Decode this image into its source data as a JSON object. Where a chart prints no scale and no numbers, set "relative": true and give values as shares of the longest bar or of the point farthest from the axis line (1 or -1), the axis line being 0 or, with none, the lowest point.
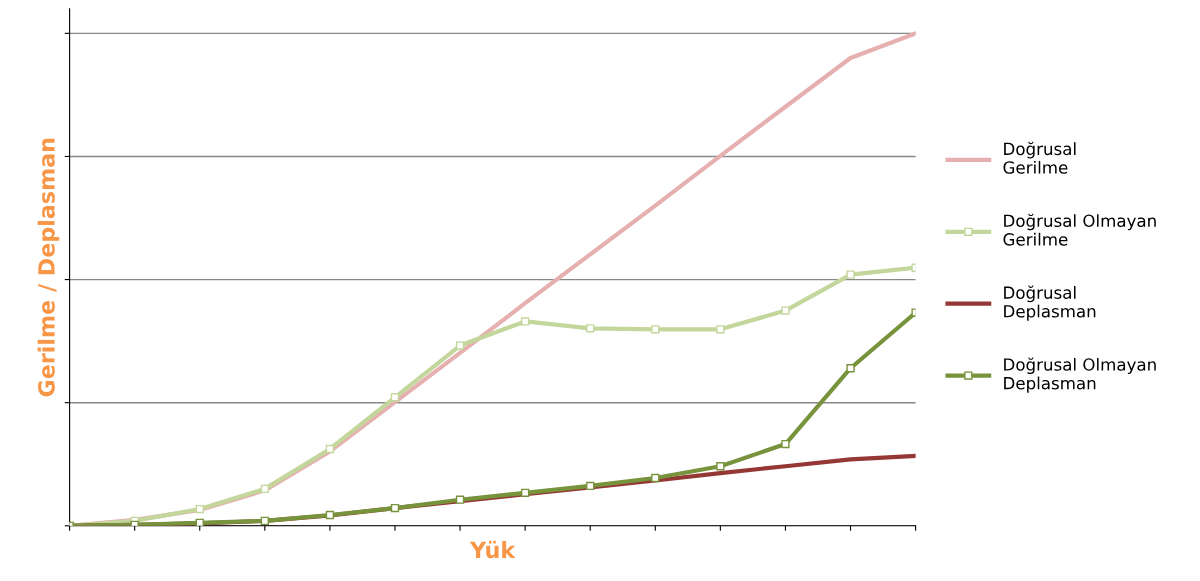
{
  "chart_data": {
    "type": "line",
    "relative": true,
    "xlabel": "Yük",
    "ylabel": "Gerilme / Deplasman",
    "categories": [
      null,
      null,
      null,
      null,
      null,
      null,
      null,
      null,
      null,
      null,
      null,
      null,
      null,
      null
    ],
    "grid": "y",
    "legend": "right",
    "marker": "none",
    "line_style": "solid",
    "series": [
      {
        "name": "Doğrusal\nGerilme",
        "color": "#e6b0b0",
        "values": [
          0,
          0.012,
          0.032,
          0.072,
          0.151,
          0.251,
          0.351,
          0.452,
          0.551,
          0.65,
          0.751,
          0.851,
          0.95,
          1
        ]
      },
      {
        "name": "Doğrusal Olmayan\nGerilme",
        "color": "#c3d69b",
        "marker": "square",
        "values": [
          0,
          0.01,
          0.034,
          0.075,
          0.156,
          0.261,
          0.366,
          0.415,
          0.401,
          0.399,
          0.399,
          0.437,
          0.51,
          0.524
        ]
      },
      {
        "name": "Doğrusal\nDeplasman",
        "color": "#953735",
        "values": [
          0,
          0.002,
          0.005,
          0.01,
          0.021,
          0.036,
          0.05,
          0.064,
          0.078,
          0.092,
          0.107,
          0.121,
          0.135,
          0.142
        ]
      },
      {
        "name": "Doğrusal Olmayan\nDeplasman",
        "color": "#77933c",
        "marker": "square",
        "values": [
          0,
          0.002,
          0.006,
          0.01,
          0.022,
          0.036,
          0.053,
          0.067,
          0.081,
          0.097,
          0.121,
          0.166,
          0.32,
          0.433
        ]
      }
    ]
  }
}
